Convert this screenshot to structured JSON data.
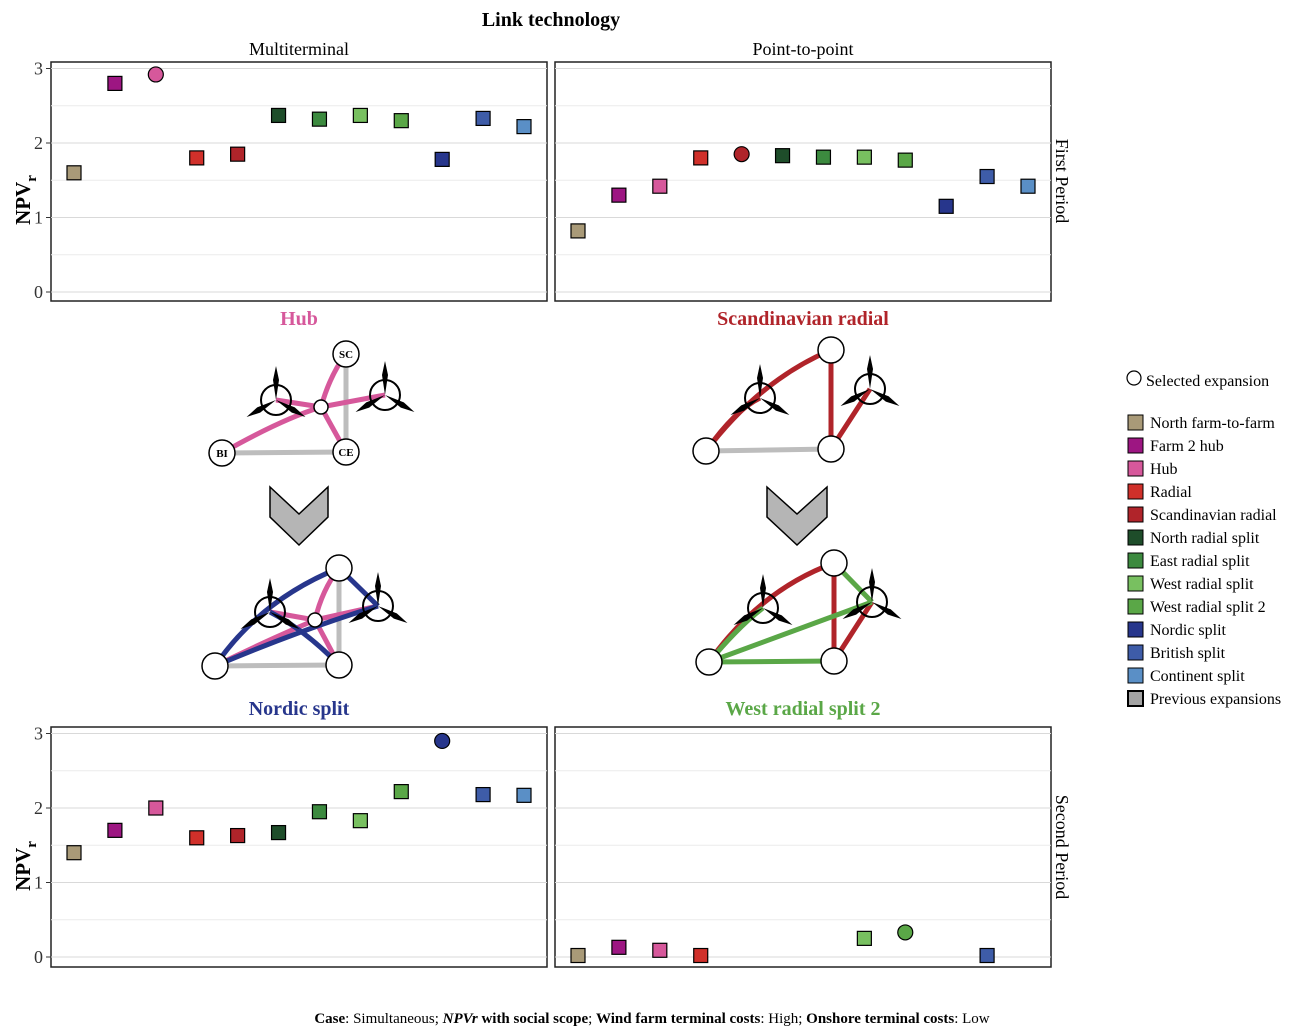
{
  "header": {
    "title": "Link technology",
    "columns": [
      "Multiterminal",
      "Point-to-point"
    ]
  },
  "rows": [
    "First Period",
    "Second Period"
  ],
  "y_axis": {
    "label_main": "NPV",
    "label_sub": "r",
    "ticks": [
      "0",
      "1",
      "2",
      "3"
    ]
  },
  "scenarios": {
    "top_left": {
      "title": "Hub",
      "color": "#d6589b"
    },
    "top_right": {
      "title": "Scandinavian radial",
      "color": "#b0242a"
    },
    "bottom_left": {
      "title": "Nordic split",
      "color": "#27368c"
    },
    "bottom_right": {
      "title": "West radial split 2",
      "color": "#5aa747"
    }
  },
  "node_labels": {
    "sc": "SC",
    "bi": "BI",
    "ce": "CE"
  },
  "legend": {
    "selected_label": "Selected expansion",
    "previous_label": "Previous expansions",
    "previous_color": "#a3a3a3",
    "items": [
      {
        "label": "North farm-to-farm",
        "color": "#a99a78"
      },
      {
        "label": "Farm 2 hub",
        "color": "#9d1682"
      },
      {
        "label": "Hub",
        "color": "#d6589b"
      },
      {
        "label": "Radial",
        "color": "#d0302a"
      },
      {
        "label": "Scandinavian radial",
        "color": "#b0242a"
      },
      {
        "label": "North radial split",
        "color": "#1e4d2a"
      },
      {
        "label": "East radial split",
        "color": "#3c8a3f"
      },
      {
        "label": "West radial split",
        "color": "#78c060"
      },
      {
        "label": "West radial split 2",
        "color": "#5aa747"
      },
      {
        "label": "Nordic split",
        "color": "#27368c"
      },
      {
        "label": "British split",
        "color": "#3e5ca8"
      },
      {
        "label": "Continent split",
        "color": "#5a8fc6"
      }
    ]
  },
  "caption": {
    "case_label": "Case",
    "case_value": ": Simultaneous;  ",
    "npv_label": "NPVr",
    "npv_rest": " with social scope",
    "npv_sep": "; ",
    "wind_label": "Wind farm terminal costs",
    "wind_value": ": High; ",
    "onshore_label": "Onshore terminal costs",
    "onshore_value": ": Low"
  },
  "chart_data": [
    {
      "type": "scatter",
      "panel": "Multiterminal / First Period",
      "ylim": [
        0,
        3.1
      ],
      "points": [
        {
          "cat": "North farm-to-farm",
          "y": 1.6
        },
        {
          "cat": "Farm 2 hub",
          "y": 2.8
        },
        {
          "cat": "Hub",
          "y": 2.92,
          "selected": true
        },
        {
          "cat": "Radial",
          "y": 1.8
        },
        {
          "cat": "Scandinavian radial",
          "y": 1.85
        },
        {
          "cat": "North radial split",
          "y": 2.37
        },
        {
          "cat": "East radial split",
          "y": 2.32
        },
        {
          "cat": "West radial split",
          "y": 2.37
        },
        {
          "cat": "West radial split 2",
          "y": 2.3
        },
        {
          "cat": "Nordic split",
          "y": 1.78
        },
        {
          "cat": "British split",
          "y": 2.33
        },
        {
          "cat": "Continent split",
          "y": 2.22
        }
      ]
    },
    {
      "type": "scatter",
      "panel": "Point-to-point / First Period",
      "ylim": [
        0,
        3.1
      ],
      "points": [
        {
          "cat": "North farm-to-farm",
          "y": 0.82
        },
        {
          "cat": "Farm 2 hub",
          "y": 1.3
        },
        {
          "cat": "Hub",
          "y": 1.42
        },
        {
          "cat": "Radial",
          "y": 1.8
        },
        {
          "cat": "Scandinavian radial",
          "y": 1.85,
          "selected": true
        },
        {
          "cat": "North radial split",
          "y": 1.83
        },
        {
          "cat": "East radial split",
          "y": 1.81
        },
        {
          "cat": "West radial split",
          "y": 1.81
        },
        {
          "cat": "West radial split 2",
          "y": 1.77
        },
        {
          "cat": "Nordic split",
          "y": 1.15
        },
        {
          "cat": "British split",
          "y": 1.55
        },
        {
          "cat": "Continent split",
          "y": 1.42
        }
      ]
    },
    {
      "type": "scatter",
      "panel": "Multiterminal / Second Period",
      "ylim": [
        0,
        3.1
      ],
      "points": [
        {
          "cat": "North farm-to-farm",
          "y": 1.4
        },
        {
          "cat": "Farm 2 hub",
          "y": 1.7
        },
        {
          "cat": "Hub",
          "y": 2.0
        },
        {
          "cat": "Radial",
          "y": 1.6
        },
        {
          "cat": "Scandinavian radial",
          "y": 1.63
        },
        {
          "cat": "North radial split",
          "y": 1.67
        },
        {
          "cat": "East radial split",
          "y": 1.95
        },
        {
          "cat": "West radial split",
          "y": 1.83
        },
        {
          "cat": "West radial split 2",
          "y": 2.22
        },
        {
          "cat": "Nordic split",
          "y": 2.9,
          "selected": true
        },
        {
          "cat": "British split",
          "y": 2.18
        },
        {
          "cat": "Continent split",
          "y": 2.17
        }
      ]
    },
    {
      "type": "scatter",
      "panel": "Point-to-point / Second Period",
      "ylim": [
        0,
        3.1
      ],
      "points": [
        {
          "cat": "North farm-to-farm",
          "y": 0.02
        },
        {
          "cat": "Farm 2 hub",
          "y": 0.13
        },
        {
          "cat": "Hub",
          "y": 0.09
        },
        {
          "cat": "Radial",
          "y": 0.02
        },
        {
          "cat": "Scandinavian radial",
          "y": null,
          "previous": true
        },
        {
          "cat": "North radial split",
          "y": null
        },
        {
          "cat": "East radial split",
          "y": null
        },
        {
          "cat": "West radial split",
          "y": 0.25
        },
        {
          "cat": "West radial split 2",
          "y": 0.33,
          "selected": true
        },
        {
          "cat": "Nordic split",
          "y": null
        },
        {
          "cat": "British split",
          "y": 0.02
        },
        {
          "cat": "Continent split",
          "y": null
        }
      ]
    }
  ]
}
